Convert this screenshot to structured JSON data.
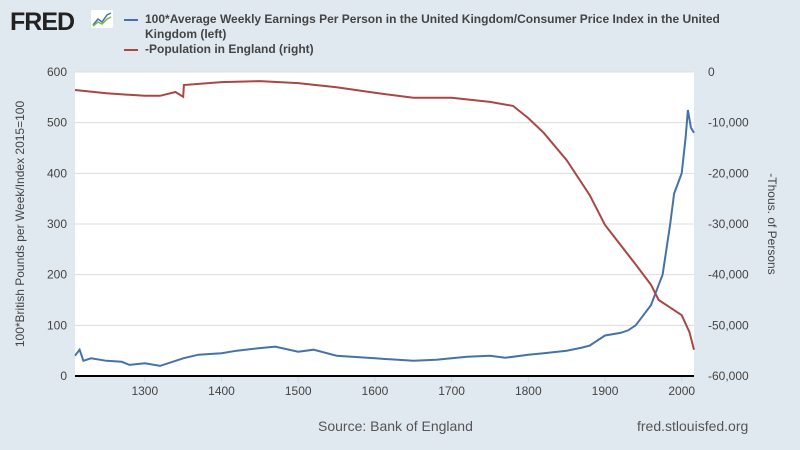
{
  "logo": "FRED",
  "source": "Source: Bank of England",
  "site": "fred.stlouisfed.org",
  "chart_data": {
    "type": "line",
    "xlim": [
      1209,
      2016
    ],
    "x_ticks": [
      1300,
      1400,
      1500,
      1600,
      1700,
      1800,
      1900,
      2000
    ],
    "left_axis": {
      "label": "100*British Pounds per Week/Index 2015=100",
      "ylim": [
        0,
        600
      ],
      "ticks": [
        "0",
        "100",
        "200",
        "300",
        "400",
        "500",
        "600"
      ]
    },
    "right_axis": {
      "label": "-Thous. of Persons",
      "ylim": [
        -60000,
        0
      ],
      "ticks": [
        "-60,000",
        "-50,000",
        "-40,000",
        "-30,000",
        "-20,000",
        "-10,000",
        "0"
      ]
    },
    "grid": true,
    "legend_position": "top",
    "series": [
      {
        "name": "100*Average Weekly Earnings Per Person in the United Kingdom/Consumer Price Index in the United Kingdom (left)",
        "axis": "left",
        "color": "#4572a7",
        "x": [
          1209,
          1215,
          1220,
          1230,
          1250,
          1270,
          1280,
          1300,
          1320,
          1350,
          1370,
          1400,
          1420,
          1450,
          1470,
          1500,
          1520,
          1550,
          1570,
          1600,
          1630,
          1650,
          1680,
          1700,
          1720,
          1750,
          1770,
          1800,
          1820,
          1850,
          1870,
          1880,
          1900,
          1920,
          1930,
          1940,
          1950,
          1960,
          1970,
          1975,
          1980,
          1985,
          1990,
          1995,
          2000,
          2005,
          2008,
          2012,
          2016
        ],
        "y": [
          40,
          52,
          30,
          35,
          30,
          28,
          22,
          25,
          20,
          35,
          42,
          45,
          50,
          55,
          58,
          48,
          52,
          40,
          38,
          35,
          32,
          30,
          32,
          35,
          38,
          40,
          36,
          42,
          45,
          50,
          56,
          60,
          80,
          85,
          90,
          100,
          120,
          140,
          180,
          200,
          250,
          300,
          360,
          380,
          400,
          470,
          525,
          490,
          480
        ]
      },
      {
        "name": "-Population in England (right)",
        "axis": "right",
        "color": "#aa4643",
        "x": [
          1209,
          1250,
          1300,
          1320,
          1340,
          1350,
          1351,
          1400,
          1450,
          1500,
          1550,
          1600,
          1650,
          1700,
          1750,
          1780,
          1800,
          1820,
          1850,
          1880,
          1900,
          1920,
          1940,
          1960,
          1970,
          1980,
          2000,
          2010,
          2016
        ],
        "y": [
          -3550,
          -4200,
          -4700,
          -4700,
          -3950,
          -4900,
          -2570,
          -2000,
          -1800,
          -2200,
          -3000,
          -4100,
          -5100,
          -5100,
          -5900,
          -6700,
          -9100,
          -12000,
          -17400,
          -24300,
          -30200,
          -34100,
          -38000,
          -42000,
          -45000,
          -46000,
          -48000,
          -51300,
          -54800
        ]
      }
    ]
  }
}
